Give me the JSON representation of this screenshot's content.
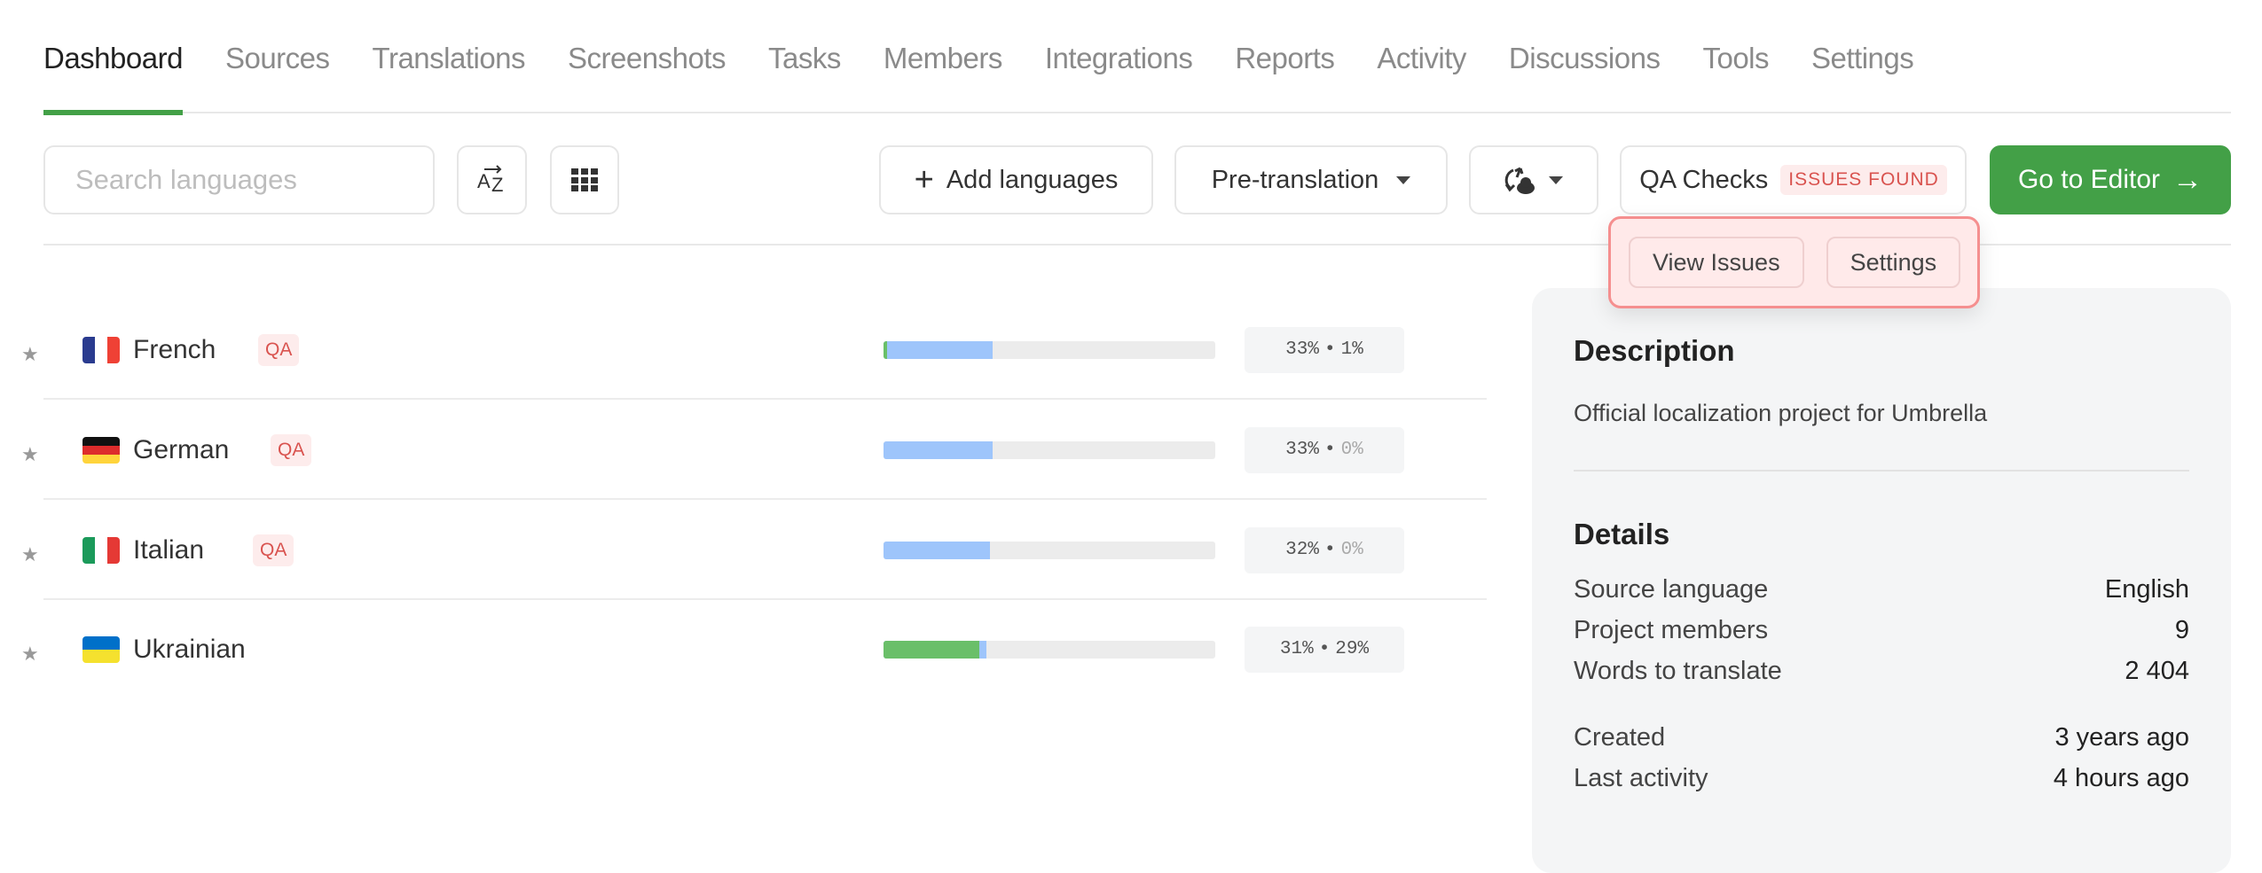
{
  "tabs": [
    {
      "label": "Dashboard",
      "active": true
    },
    {
      "label": "Sources"
    },
    {
      "label": "Translations"
    },
    {
      "label": "Screenshots"
    },
    {
      "label": "Tasks"
    },
    {
      "label": "Members"
    },
    {
      "label": "Integrations"
    },
    {
      "label": "Reports"
    },
    {
      "label": "Activity"
    },
    {
      "label": "Discussions"
    },
    {
      "label": "Tools"
    },
    {
      "label": "Settings"
    }
  ],
  "toolbar": {
    "search_placeholder": "Search languages",
    "sort_icon": "sort-az-icon",
    "grid_icon": "grid-view-icon",
    "add_languages": "Add languages",
    "pre_translation": "Pre-translation",
    "sync_icon": "sync-cloud-icon",
    "qa_checks": "QA Checks",
    "qa_badge": "ISSUES FOUND",
    "go_to_editor": "Go to Editor"
  },
  "qa_popover": {
    "view_issues": "View Issues",
    "settings": "Settings"
  },
  "languages": [
    {
      "name": "French",
      "qa": "QA",
      "translated": 33,
      "approved": 1,
      "translated_label": "33%",
      "approved_label": "1%",
      "flag": [
        "#2a3b8f",
        "#ffffff",
        "#ef4135"
      ]
    },
    {
      "name": "German",
      "qa": "QA",
      "translated": 33,
      "approved": 0,
      "translated_label": "33%",
      "approved_label": "0%",
      "flag": [
        "#111111",
        "#dd2c2c",
        "#ffd43b"
      ]
    },
    {
      "name": "Italian",
      "qa": "QA",
      "translated": 32,
      "approved": 0,
      "translated_label": "32%",
      "approved_label": "0%",
      "flag": [
        "#1b9a5a",
        "#ffffff",
        "#e53935"
      ]
    },
    {
      "name": "Ukrainian",
      "qa": "",
      "translated": 31,
      "approved": 29,
      "translated_label": "31%",
      "approved_label": "29%",
      "flag": [
        "#0070c9",
        "#f5e12e"
      ]
    }
  ],
  "panel": {
    "description_title": "Description",
    "description": "Official localization project for Umbrella",
    "details_title": "Details",
    "details": [
      {
        "label": "Source language",
        "value": "English"
      },
      {
        "label": "Project members",
        "value": "9"
      },
      {
        "label": "Words to translate",
        "value": "2 404"
      },
      {
        "label": "Created",
        "value": "3 years ago"
      },
      {
        "label": "Last activity",
        "value": "4 hours ago"
      }
    ]
  },
  "colors": {
    "accent": "#43a047",
    "translated": "#9ec5fb",
    "approved": "#6abf69",
    "issue": "#d9534f"
  }
}
